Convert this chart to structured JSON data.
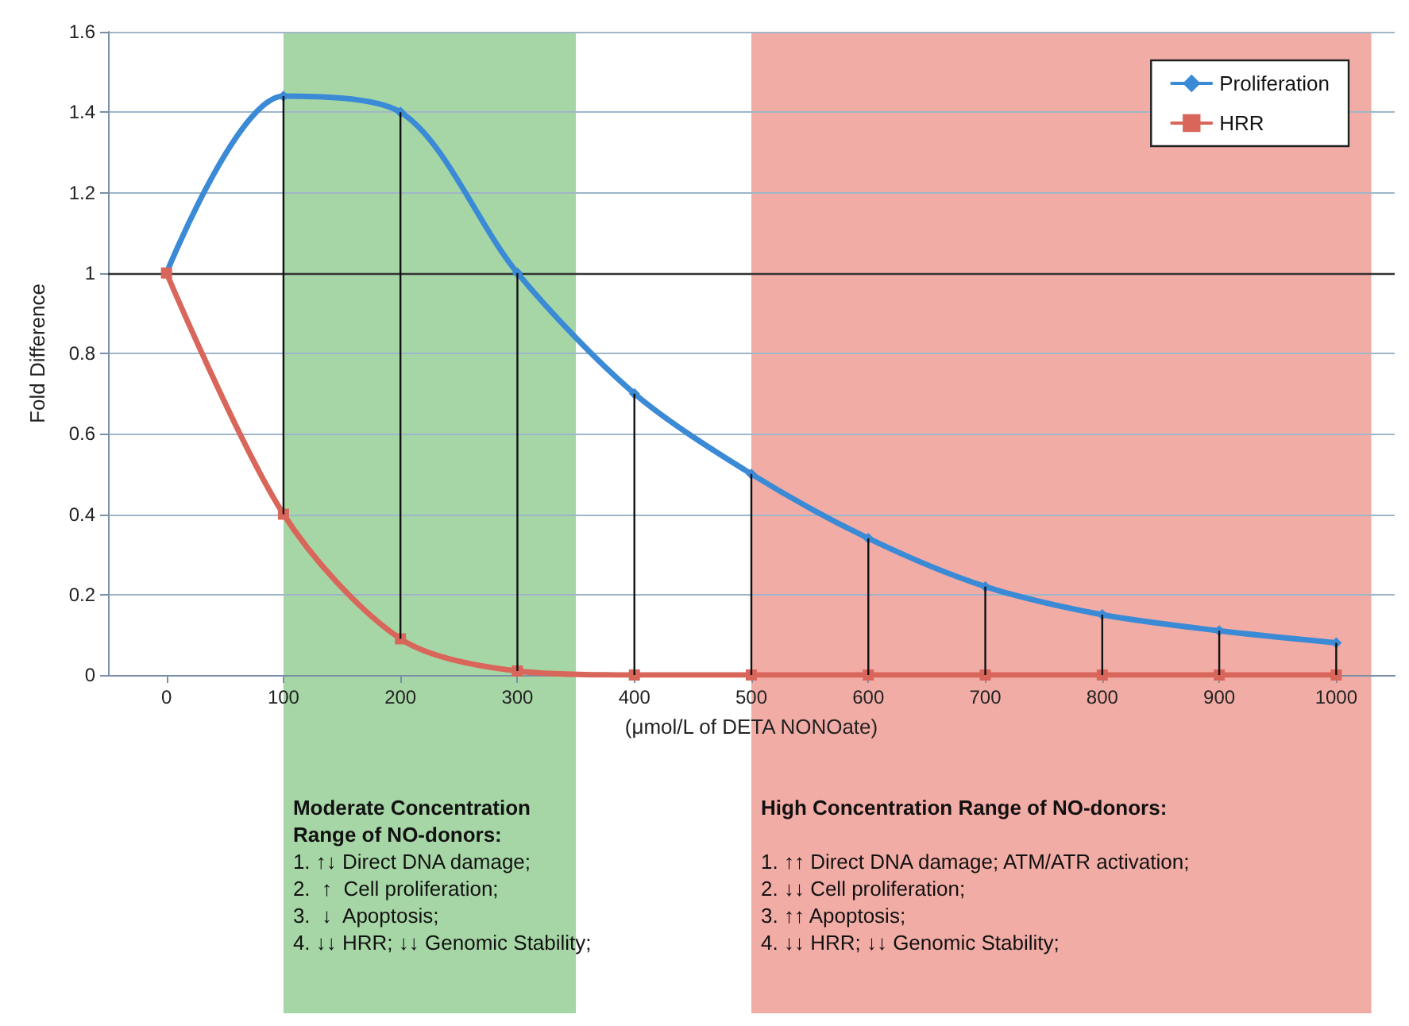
{
  "chart_data": {
    "type": "line",
    "xlabel": "(μmol/L of DETA NONOate)",
    "ylabel": "Fold Difference",
    "x": [
      0,
      100,
      200,
      300,
      400,
      500,
      600,
      700,
      800,
      900,
      1000
    ],
    "series": [
      {
        "name": "Proliferation",
        "color": "#3b8ad6",
        "marker": "diamond",
        "values": [
          1,
          1.44,
          1.4,
          1.0,
          0.7,
          0.5,
          0.34,
          0.22,
          0.15,
          0.11,
          0.08
        ],
        "errors": [
          null,
          [
            0.4,
            1.44
          ],
          [
            0.09,
            1.4
          ],
          [
            0.01,
            1.0
          ],
          [
            0,
            0.7
          ],
          [
            0,
            0.5
          ],
          [
            0,
            0.34
          ],
          [
            0,
            0.22
          ],
          [
            0,
            0.15
          ],
          [
            0,
            0.11
          ],
          [
            0,
            0.08
          ]
        ]
      },
      {
        "name": "HRR",
        "color": "#d9665a",
        "marker": "square",
        "values": [
          1,
          0.4,
          0.09,
          0.01,
          0,
          0,
          0,
          0,
          0,
          0,
          0
        ]
      }
    ],
    "xlim": [
      -50,
      1050
    ],
    "xticks": [
      0,
      100,
      200,
      300,
      400,
      500,
      600,
      700,
      800,
      900,
      1000
    ],
    "ylim": [
      0,
      1.6
    ],
    "yticks": [
      0,
      0.2,
      0.4,
      0.6,
      0.8,
      1,
      1.2,
      1.4,
      1.6
    ],
    "grid": "y",
    "legend": "top right",
    "ref_lines": [
      {
        "axis": "y",
        "value": 1,
        "color": "#333333"
      }
    ],
    "bands": [
      {
        "axis": "x",
        "from": 100,
        "to": 350,
        "color": "#a6d6a6",
        "label": "Moderate Concentration Range of NO-donors:\n1. ↑↓ Direct DNA damage;\n2.  ↑  Cell proliferation;\n3.  ↓  Apoptosis;\n4. ↓↓ HRR; ↓↓ Genomic Stability;"
      },
      {
        "axis": "x",
        "from": 500,
        "to": 1030,
        "color": "#f2aca6",
        "label": "High Concentration Range of NO-donors:\n\n1. ↑↑ Direct DNA damage; ATM/ATR activation;\n2. ↓↓ Cell proliferation;\n3. ↑↑ Apoptosis;\n4. ↓↓ HRR; ↓↓ Genomic Stability;"
      }
    ]
  }
}
